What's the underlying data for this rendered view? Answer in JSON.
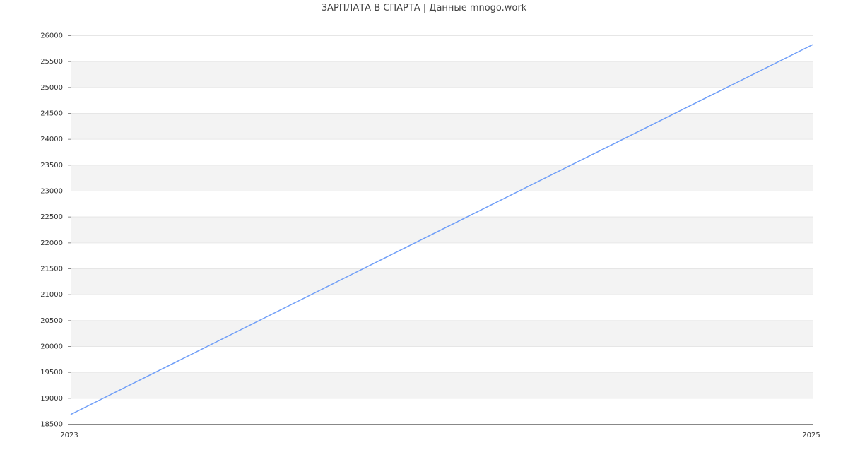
{
  "chart_data": {
    "type": "line",
    "title": "ЗАРПЛАТА В СПАРТА | Данные mnogo.work",
    "xlabel": "",
    "ylabel": "",
    "x": [
      2023,
      2025
    ],
    "x_tick_labels": [
      "2023",
      "2025"
    ],
    "series": [
      {
        "values": [
          18680,
          25820
        ],
        "color": "#6f9ef8"
      }
    ],
    "ylim": [
      18500,
      26000
    ],
    "y_ticks": [
      18500,
      19000,
      19500,
      20000,
      20500,
      21000,
      21500,
      22000,
      22500,
      23000,
      23500,
      24000,
      24500,
      25000,
      25500,
      26000
    ],
    "grid": true,
    "band_color": "#f3f3f3",
    "legend": "none"
  }
}
